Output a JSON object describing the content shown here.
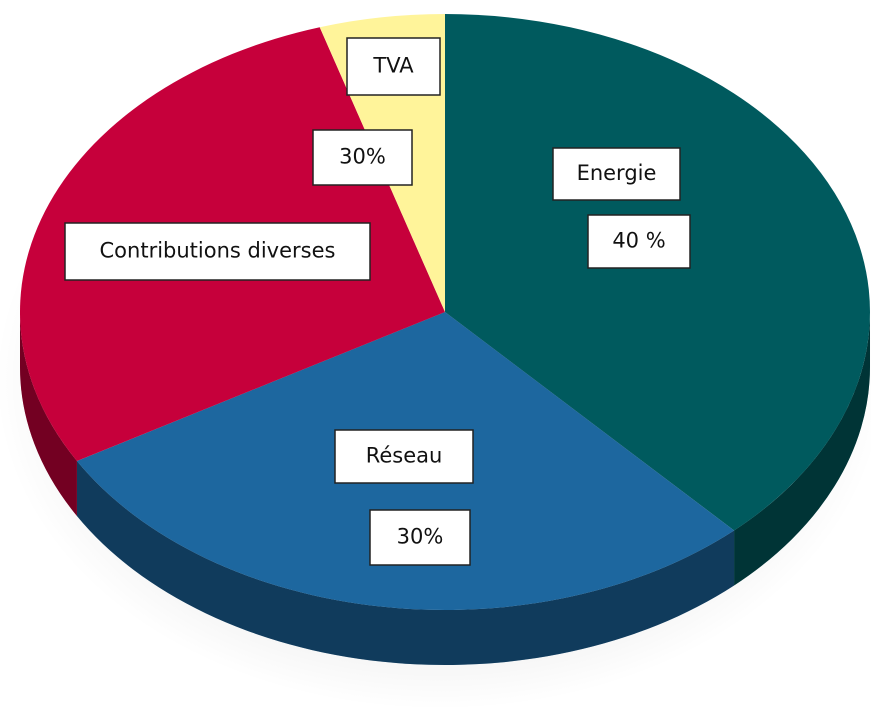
{
  "chart_data": {
    "type": "pie3d",
    "categories": [
      "Energie",
      "Réseau",
      "Contributions diverses",
      "TVA"
    ],
    "values": [
      40,
      30,
      30,
      5
    ],
    "value_labels": [
      "40 %",
      "30%",
      "30%",
      null
    ],
    "colors": [
      "#005a5e",
      "#1d679f",
      "#c6003b",
      "#fff49a"
    ]
  }
}
